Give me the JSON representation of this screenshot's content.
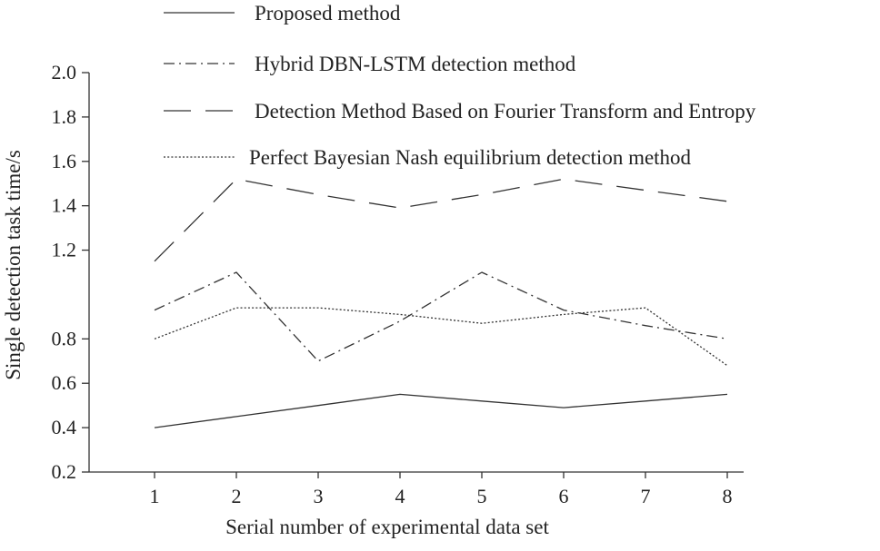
{
  "chart_data": {
    "type": "line",
    "xlabel": "Serial number of experimental data set",
    "ylabel": "Single detection task time/s",
    "x": [
      1,
      2,
      3,
      4,
      5,
      6,
      7,
      8
    ],
    "xticks": [
      "1",
      "2",
      "3",
      "4",
      "5",
      "6",
      "7",
      "8"
    ],
    "xlim": [
      0.2,
      8.2
    ],
    "yticks": [
      "0.2",
      "0.4",
      "0.6",
      "0.8",
      "1.2",
      "1.4",
      "1.6",
      "1.8",
      "2.0"
    ],
    "ylim": [
      0.2,
      2.0
    ],
    "grid": false,
    "legend_position": "top",
    "series": [
      {
        "name": "Proposed method",
        "style": "solid",
        "color": "#333333",
        "values": [
          0.4,
          0.45,
          0.5,
          0.55,
          0.52,
          0.49,
          0.52,
          0.55
        ]
      },
      {
        "name": "Hybrid DBN-LSTM detection method",
        "style": "dashdot",
        "color": "#333333",
        "values": [
          0.93,
          1.1,
          0.7,
          0.88,
          1.1,
          0.93,
          0.86,
          0.8
        ]
      },
      {
        "name": "Detection Method Based on Fourier Transform and Entropy",
        "style": "dashed",
        "color": "#333333",
        "values": [
          1.15,
          1.52,
          1.45,
          1.39,
          1.45,
          1.52,
          1.47,
          1.42
        ]
      },
      {
        "name": "Perfect Bayesian Nash equilibrium detection method",
        "style": "dotted",
        "color": "#333333",
        "values": [
          0.8,
          0.94,
          0.94,
          0.91,
          0.87,
          0.91,
          0.94,
          0.68
        ]
      }
    ]
  }
}
